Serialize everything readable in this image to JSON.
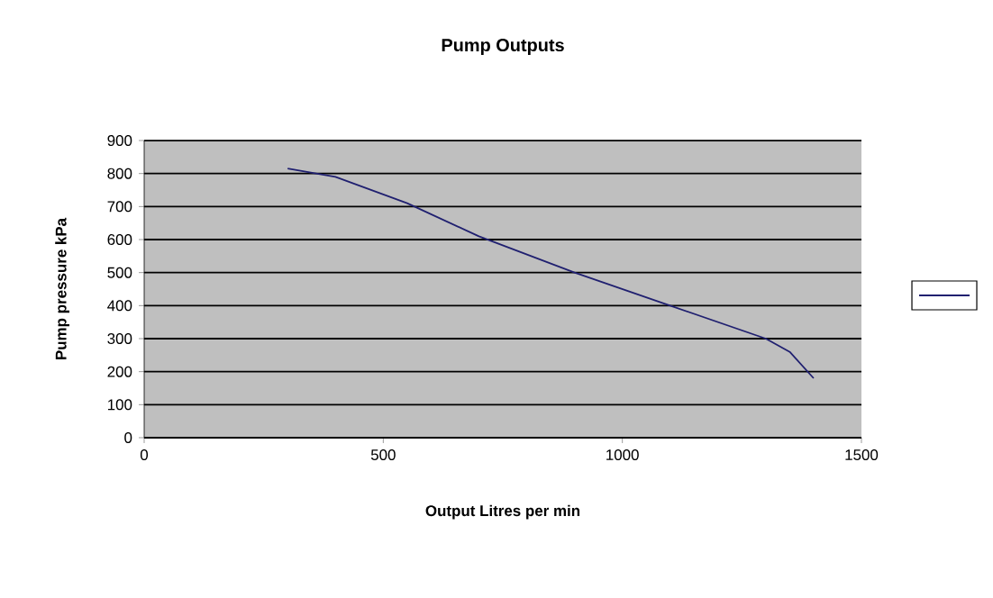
{
  "chart_data": {
    "type": "line",
    "title": "Pump Outputs",
    "xlabel": "Output Litres per min",
    "ylabel": "Pump pressure kPa",
    "x": [
      300,
      400,
      550,
      700,
      900,
      1100,
      1300,
      1350,
      1400
    ],
    "series": [
      {
        "color": "#202070",
        "values": [
          815,
          790,
          710,
          610,
          500,
          400,
          300,
          260,
          180
        ]
      }
    ],
    "xlim": [
      0,
      1500
    ],
    "xticks": [
      0,
      500,
      1000,
      1500
    ],
    "ylim": [
      0,
      900
    ],
    "yticks": [
      0,
      100,
      200,
      300,
      400,
      500,
      600,
      700,
      800,
      900
    ],
    "grid": "y",
    "marker": "none",
    "line_style": "solid"
  }
}
